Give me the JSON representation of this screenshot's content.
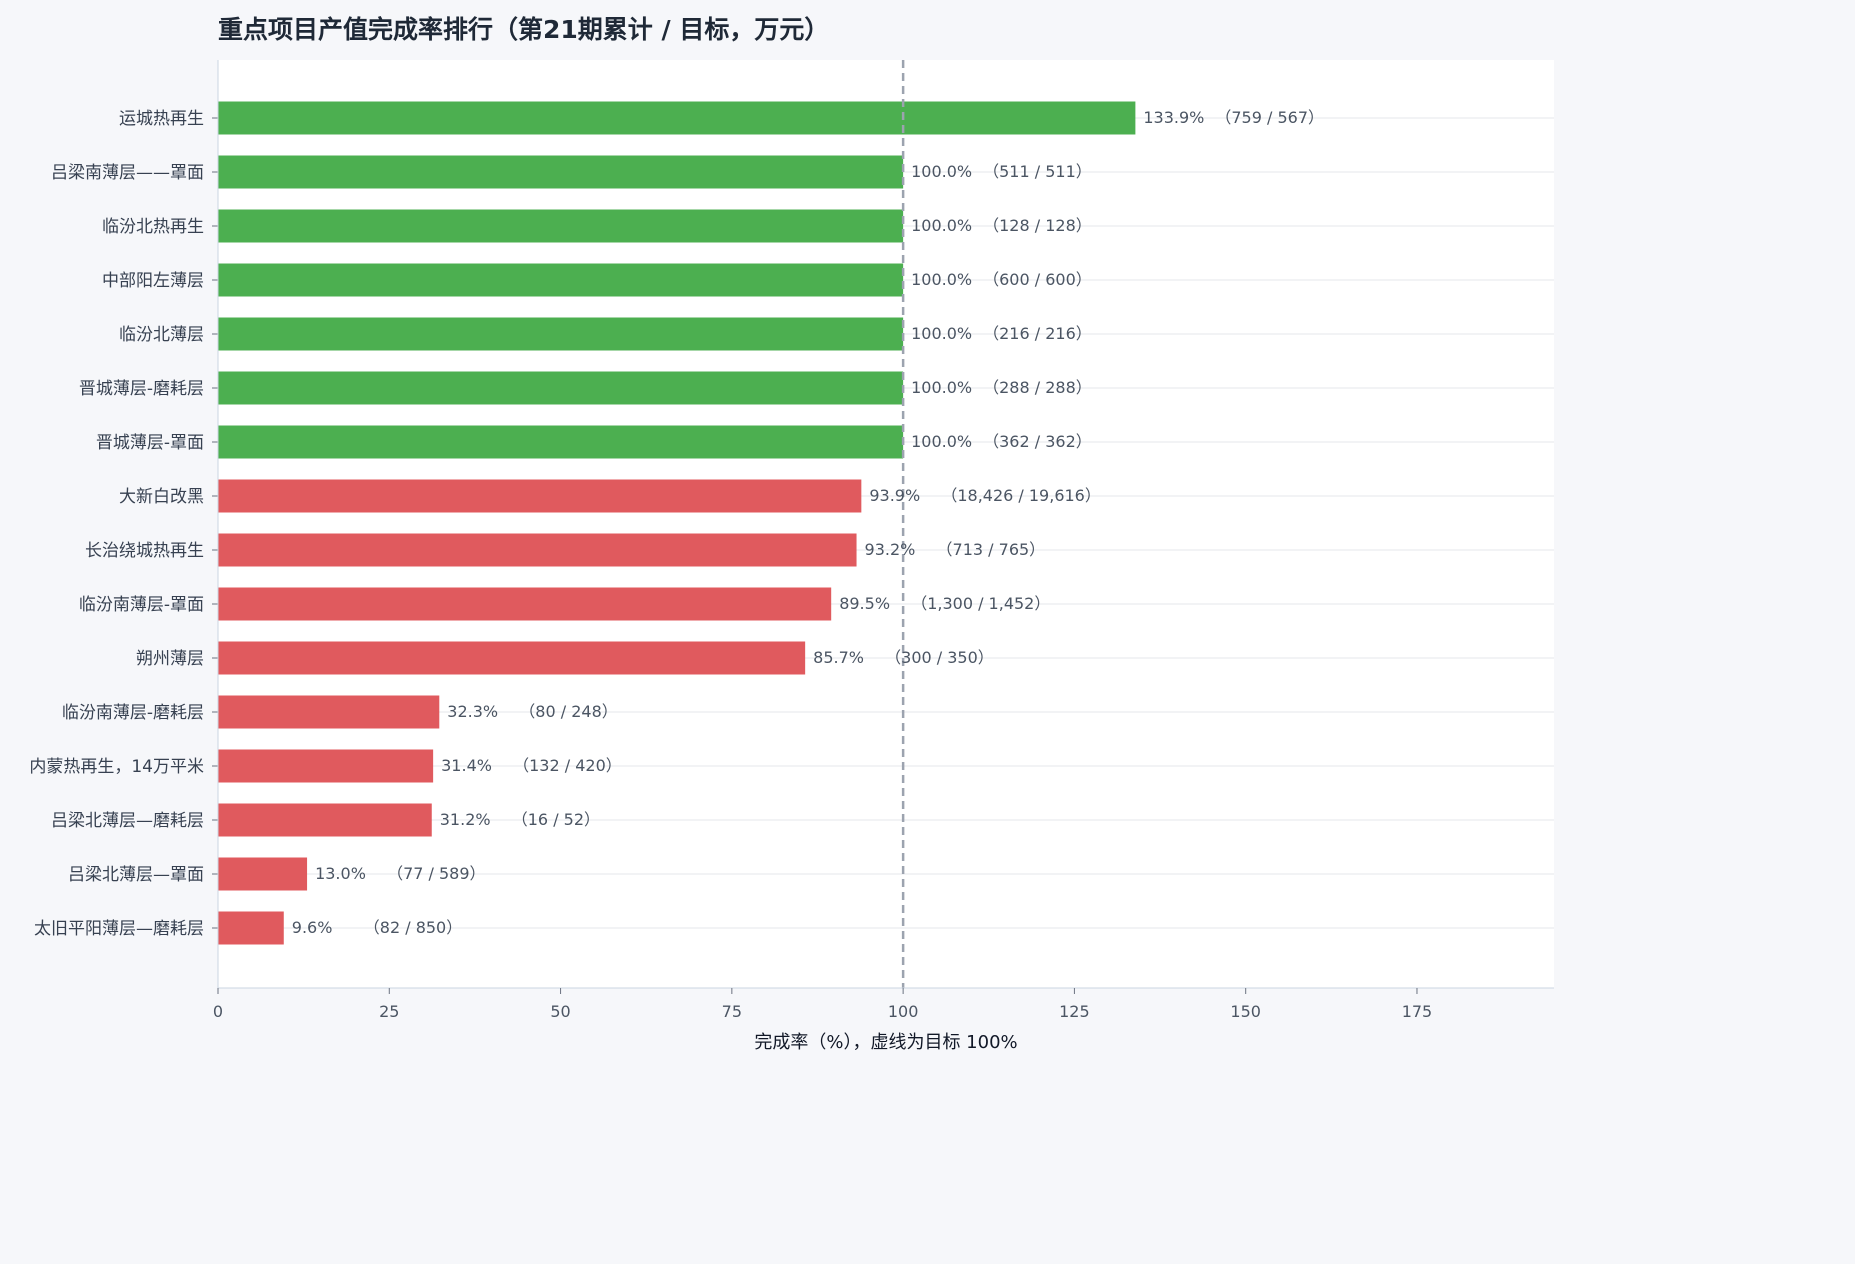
{
  "chart_data": {
    "type": "bar",
    "orientation": "horizontal",
    "title": "重点项目产值完成率排行（第21期累计 / 目标，万元）",
    "xlabel": "完成率（%），虚线为目标 100%",
    "ylabel": "",
    "xlim": [
      0,
      195
    ],
    "xticks": [
      0,
      25,
      50,
      75,
      100,
      125,
      150,
      175
    ],
    "target_line": 100,
    "grid": "horizontal",
    "colors": {
      "met": "#4caf50",
      "unmet": "#e05a5e",
      "target": "#9ca3af"
    },
    "categories": [
      "运城热再生",
      "吕梁南薄层——罩面",
      "临汾北热再生",
      "中部阳左薄层",
      "临汾北薄层",
      "晋城薄层-磨耗层",
      "晋城薄层-罩面",
      "大新白改黑",
      "长治绕城热再生",
      "临汾南薄层-罩面",
      "朔州薄层",
      "临汾南薄层-磨耗层",
      "内蒙热再生，14万平米",
      "吕梁北薄层—磨耗层",
      "吕梁北薄层—罩面",
      "太旧平阳薄层—磨耗层"
    ],
    "values": [
      133.9,
      100.0,
      100.0,
      100.0,
      100.0,
      100.0,
      100.0,
      93.9,
      93.2,
      89.5,
      85.7,
      32.3,
      31.4,
      31.2,
      13.0,
      9.6
    ],
    "value_labels": [
      "133.9%",
      "100.0%",
      "100.0%",
      "100.0%",
      "100.0%",
      "100.0%",
      "100.0%",
      "93.9%",
      "93.2%",
      "89.5%",
      "85.7%",
      "32.3%",
      "31.4%",
      "31.2%",
      "13.0%",
      "9.6%"
    ],
    "ratio_labels": [
      "（759 / 567）",
      "（511 / 511）",
      "（128 / 128）",
      "（600 / 600）",
      "（216 / 216）",
      "（288 / 288）",
      "（362 / 362）",
      "（18,426 / 19,616）",
      "（713 / 765）",
      "（1,300 / 1,452）",
      "（300 / 350）",
      "（80 / 248）",
      "（132 / 420）",
      "（16 / 52）",
      "（77 / 589）",
      "（82 / 850）"
    ]
  }
}
